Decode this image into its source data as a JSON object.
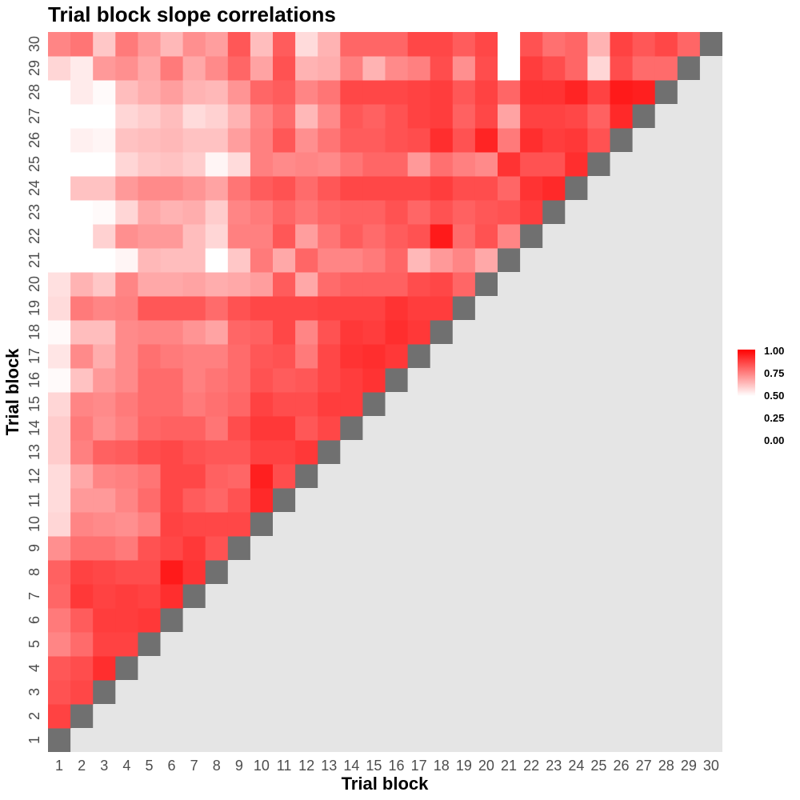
{
  "chart_data": {
    "type": "heatmap",
    "title": "Trial block slope correlations",
    "xlabel": "Trial block",
    "ylabel": "Trial block",
    "x_categories": [
      "1",
      "2",
      "3",
      "4",
      "5",
      "6",
      "7",
      "8",
      "9",
      "10",
      "11",
      "12",
      "13",
      "14",
      "15",
      "16",
      "17",
      "18",
      "19",
      "20",
      "21",
      "22",
      "23",
      "24",
      "25",
      "26",
      "27",
      "28",
      "29",
      "30"
    ],
    "y_categories": [
      "1",
      "2",
      "3",
      "4",
      "5",
      "6",
      "7",
      "8",
      "9",
      "10",
      "11",
      "12",
      "13",
      "14",
      "15",
      "16",
      "17",
      "18",
      "19",
      "20",
      "21",
      "22",
      "23",
      "24",
      "25",
      "26",
      "27",
      "28",
      "29",
      "30"
    ],
    "color_scale": {
      "low": "#ffffff",
      "high": "#ff0000",
      "limits": [
        0.5,
        1.0
      ],
      "diagonal_color": "#707070",
      "background": "#e5e5e5"
    },
    "legend": {
      "position": "right",
      "labels": [
        "1.00",
        "0.75",
        "0.50",
        "0.25",
        "0.00"
      ]
    },
    "grid": false,
    "rows": [
      [],
      [
        0.87
      ],
      [
        0.84,
        0.86
      ],
      [
        0.83,
        0.85,
        0.91
      ],
      [
        0.74,
        0.79,
        0.87,
        0.87
      ],
      [
        0.76,
        0.82,
        0.88,
        0.88,
        0.89
      ],
      [
        0.8,
        0.89,
        0.87,
        0.88,
        0.87,
        0.91
      ],
      [
        0.81,
        0.87,
        0.86,
        0.85,
        0.85,
        0.95,
        0.9
      ],
      [
        0.72,
        0.78,
        0.78,
        0.76,
        0.84,
        0.86,
        0.89,
        0.84
      ],
      [
        0.58,
        0.74,
        0.73,
        0.72,
        0.75,
        0.87,
        0.86,
        0.86,
        0.86
      ],
      [
        0.57,
        0.7,
        0.7,
        0.74,
        0.79,
        0.86,
        0.82,
        0.8,
        0.84,
        0.92
      ],
      [
        0.57,
        0.67,
        0.74,
        0.75,
        0.77,
        0.86,
        0.86,
        0.81,
        0.8,
        0.94,
        0.85
      ],
      [
        0.6,
        0.75,
        0.81,
        0.82,
        0.85,
        0.86,
        0.84,
        0.83,
        0.83,
        0.87,
        0.87,
        0.89
      ],
      [
        0.6,
        0.76,
        0.72,
        0.75,
        0.8,
        0.81,
        0.81,
        0.77,
        0.85,
        0.89,
        0.89,
        0.83,
        0.86
      ],
      [
        0.58,
        0.74,
        0.73,
        0.76,
        0.79,
        0.79,
        0.76,
        0.78,
        0.8,
        0.87,
        0.85,
        0.85,
        0.88,
        0.88
      ],
      [
        0.51,
        0.62,
        0.7,
        0.73,
        0.79,
        0.79,
        0.75,
        0.77,
        0.79,
        0.84,
        0.82,
        0.83,
        0.86,
        0.88,
        0.9
      ],
      [
        0.55,
        0.73,
        0.66,
        0.73,
        0.78,
        0.76,
        0.75,
        0.75,
        0.79,
        0.83,
        0.84,
        0.76,
        0.86,
        0.9,
        0.91,
        0.89
      ],
      [
        0.51,
        0.63,
        0.63,
        0.73,
        0.74,
        0.74,
        0.71,
        0.68,
        0.8,
        0.81,
        0.86,
        0.74,
        0.84,
        0.89,
        0.88,
        0.91,
        0.89
      ],
      [
        0.57,
        0.76,
        0.74,
        0.75,
        0.83,
        0.83,
        0.83,
        0.79,
        0.84,
        0.86,
        0.86,
        0.86,
        0.87,
        0.87,
        0.87,
        0.9,
        0.88,
        0.88
      ],
      [
        0.56,
        0.65,
        0.61,
        0.74,
        0.67,
        0.67,
        0.68,
        0.66,
        0.67,
        0.69,
        0.82,
        0.67,
        0.79,
        0.81,
        0.81,
        0.81,
        0.85,
        0.86,
        0.8
      ],
      [
        0.5,
        0.5,
        0.5,
        0.52,
        0.64,
        0.63,
        0.63,
        0.5,
        0.61,
        0.76,
        0.67,
        0.8,
        0.74,
        0.74,
        0.76,
        0.8,
        0.64,
        0.7,
        0.74,
        0.67
      ],
      [
        0.5,
        0.5,
        0.59,
        0.72,
        0.7,
        0.7,
        0.63,
        0.58,
        0.75,
        0.75,
        0.83,
        0.69,
        0.77,
        0.82,
        0.79,
        0.82,
        0.84,
        0.95,
        0.79,
        0.84,
        0.74
      ],
      [
        0.5,
        0.5,
        0.51,
        0.58,
        0.67,
        0.65,
        0.66,
        0.6,
        0.74,
        0.76,
        0.8,
        0.77,
        0.8,
        0.81,
        0.81,
        0.84,
        0.8,
        0.84,
        0.81,
        0.83,
        0.84,
        0.88
      ],
      [
        0.5,
        0.62,
        0.62,
        0.7,
        0.73,
        0.73,
        0.71,
        0.68,
        0.77,
        0.82,
        0.84,
        0.79,
        0.83,
        0.86,
        0.86,
        0.86,
        0.86,
        0.88,
        0.85,
        0.85,
        0.8,
        0.9,
        0.92
      ],
      [
        0.5,
        0.5,
        0.5,
        0.58,
        0.61,
        0.62,
        0.6,
        0.52,
        0.57,
        0.75,
        0.73,
        0.74,
        0.73,
        0.77,
        0.8,
        0.8,
        0.7,
        0.78,
        0.75,
        0.73,
        0.9,
        0.84,
        0.84,
        0.91
      ],
      [
        0.5,
        0.53,
        0.52,
        0.62,
        0.63,
        0.64,
        0.62,
        0.62,
        0.69,
        0.75,
        0.83,
        0.72,
        0.77,
        0.82,
        0.82,
        0.84,
        0.85,
        0.91,
        0.84,
        0.93,
        0.76,
        0.91,
        0.88,
        0.89,
        0.84
      ],
      [
        0.5,
        0.5,
        0.5,
        0.58,
        0.6,
        0.63,
        0.57,
        0.59,
        0.65,
        0.74,
        0.79,
        0.64,
        0.73,
        0.83,
        0.81,
        0.84,
        0.87,
        0.88,
        0.81,
        0.86,
        0.68,
        0.87,
        0.87,
        0.86,
        0.81,
        0.92
      ],
      [
        0.5,
        0.54,
        0.51,
        0.63,
        0.66,
        0.69,
        0.65,
        0.64,
        0.71,
        0.8,
        0.82,
        0.74,
        0.77,
        0.86,
        0.86,
        0.86,
        0.87,
        0.88,
        0.83,
        0.87,
        0.8,
        0.9,
        0.9,
        0.93,
        0.87,
        0.95,
        0.94
      ],
      [
        0.58,
        0.54,
        0.7,
        0.72,
        0.67,
        0.76,
        0.67,
        0.73,
        0.8,
        0.68,
        0.84,
        0.65,
        0.66,
        0.75,
        0.65,
        0.73,
        0.75,
        0.85,
        0.72,
        0.85,
        0.5,
        0.88,
        0.85,
        0.8,
        0.58,
        0.85,
        0.79,
        0.79
      ],
      [
        0.74,
        0.77,
        0.61,
        0.76,
        0.7,
        0.64,
        0.72,
        0.69,
        0.83,
        0.63,
        0.82,
        0.57,
        0.65,
        0.8,
        0.8,
        0.8,
        0.86,
        0.86,
        0.82,
        0.86,
        0.5,
        0.84,
        0.78,
        0.8,
        0.65,
        0.87,
        0.83,
        0.86,
        0.8
      ]
    ]
  }
}
